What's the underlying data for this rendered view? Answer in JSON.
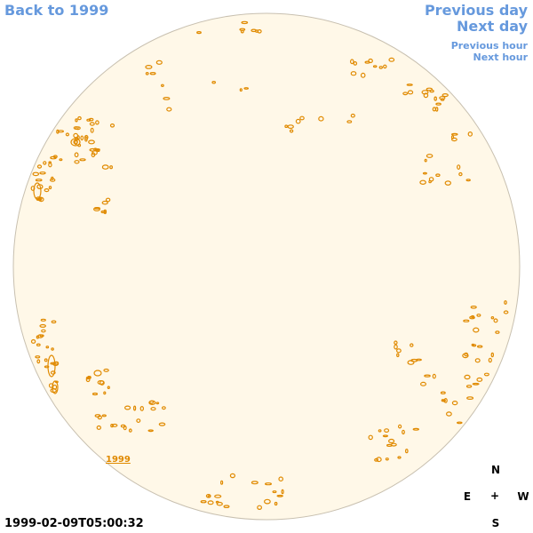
{
  "nav": {
    "back_label": "Back to 1999",
    "prev_day_label": "Previous day",
    "next_day_label": "Next day",
    "prev_hour_label": "Previous hour",
    "next_hour_label": "Next hour"
  },
  "timestamp": "1999-02-09T05:00:32",
  "year_label": "1999",
  "compass": {
    "north": "N",
    "east": "E",
    "center": "+",
    "west": "W",
    "south": "S"
  },
  "colors": {
    "link": "#6699dd",
    "disc_fill": "#fff8e8",
    "disc_edge": "#c8c0b0",
    "contour": "#e08a00"
  }
}
